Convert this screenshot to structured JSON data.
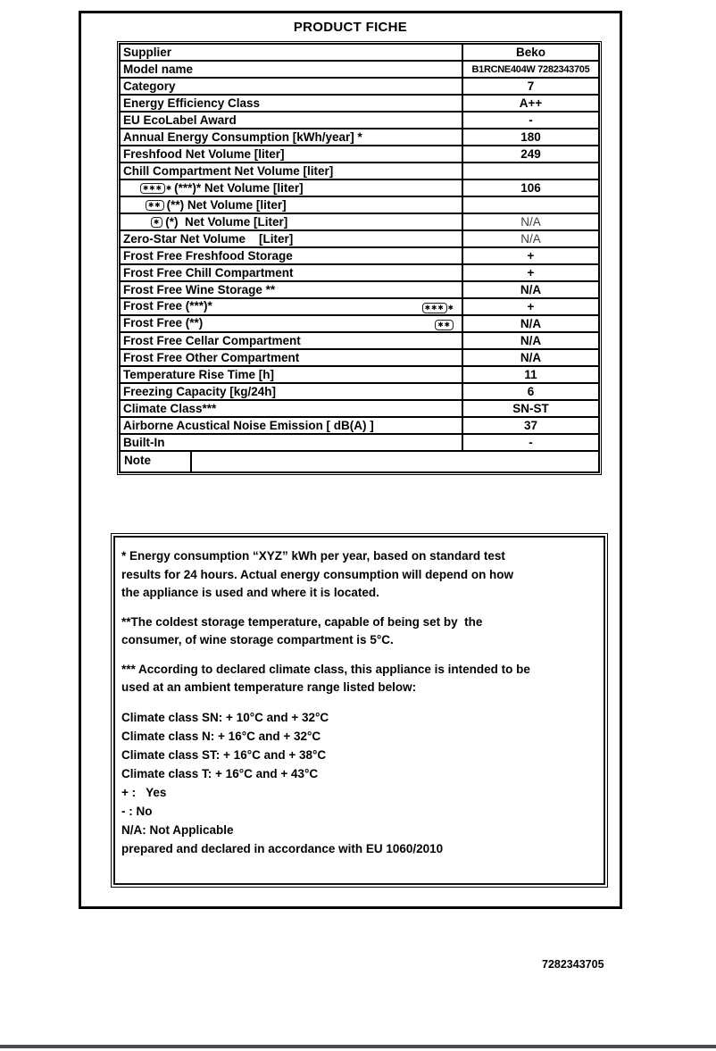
{
  "title": "PRODUCT FICHE",
  "colors": {
    "border": "#000000",
    "gray_na_text": "#3d3d3d",
    "bottom_rule": "#474c52"
  },
  "table": {
    "rows": [
      {
        "label": "Supplier",
        "value": "Beko"
      },
      {
        "label": "Model name",
        "value": "B1RCNE404W 7282343705",
        "value_style": "small"
      },
      {
        "label": "Category",
        "value": "7"
      },
      {
        "label": "Energy Efficiency Class",
        "value": "A++"
      },
      {
        "label": "EU EcoLabel Award",
        "value": "-"
      },
      {
        "label": "Annual Energy Consumption [kWh/year] *",
        "value": "180"
      },
      {
        "label": "Freshfood Net Volume [liter]",
        "value": "249"
      },
      {
        "label": "Chill Compartment Net Volume [liter]",
        "value": ""
      },
      {
        "label": "(***)* Net Volume [liter]",
        "value": "106",
        "indent": 22,
        "star": {
          "count": 3,
          "outer": true,
          "pos": "left"
        }
      },
      {
        "label": "(**) Net Volume [liter]",
        "value": "",
        "indent": 28,
        "star": {
          "count": 2,
          "outer": false,
          "pos": "left"
        }
      },
      {
        "label": "(*)  Net Volume [Liter]",
        "value": "N/A",
        "indent": 34,
        "star": {
          "count": 1,
          "outer": false,
          "pos": "left"
        },
        "value_style": "gray"
      },
      {
        "label": "Zero-Star Net Volume    [Liter]",
        "value": "N/A",
        "value_style": "gray"
      },
      {
        "label": "Frost Free Freshfood Storage",
        "value": "+"
      },
      {
        "label": "Frost Free Chill Compartment",
        "value": "+"
      },
      {
        "label": "Frost Free Wine Storage **",
        "value": "N/A"
      },
      {
        "label": "Frost Free (***)*",
        "value": "+",
        "star": {
          "count": 3,
          "outer": true,
          "pos": "right"
        }
      },
      {
        "label": "Frost Free (**)",
        "value": "N/A",
        "star": {
          "count": 2,
          "outer": false,
          "pos": "right"
        }
      },
      {
        "label": "Frost Free Cellar Compartment",
        "value": "N/A"
      },
      {
        "label": "Frost Free Other Compartment",
        "value": "N/A"
      },
      {
        "label": "Temperature Rise Time [h]",
        "value": "11"
      },
      {
        "label": "Freezing Capacity [kg/24h]",
        "value": "6"
      },
      {
        "label": "Climate Class***",
        "value": "SN-ST"
      },
      {
        "label": "Airborne Acustical Noise Emission [ dB(A) ]",
        "value": "37"
      },
      {
        "label": "Built-In",
        "value": "-"
      }
    ],
    "note_row": {
      "label": "Note",
      "value": ""
    }
  },
  "icons": {
    "freezer_star_glyph": "✱"
  },
  "notes": [
    "* Energy consumption “XYZ” kWh per year, based on standard test\nresults for 24 hours. Actual energy consumption will depend on how\nthe appliance is used and where it is located.",
    "**The coldest storage temperature, capable of being set by  the\nconsumer, of wine storage compartment is 5°C.",
    "*** According to declared climate class, this appliance is intended to be\nused at an ambient temperature range listed below:",
    "Climate class SN: + 10°C and + 32°C",
    "Climate class N: + 16°C and + 32°C",
    "Climate class ST: + 16°C and + 38°C",
    "Climate class T: + 16°C and + 43°C",
    "+ :   Yes",
    "- : No",
    "N/A: Not Applicable",
    "prepared and declared in accordance with EU 1060/2010"
  ],
  "footer_code": "7282343705"
}
